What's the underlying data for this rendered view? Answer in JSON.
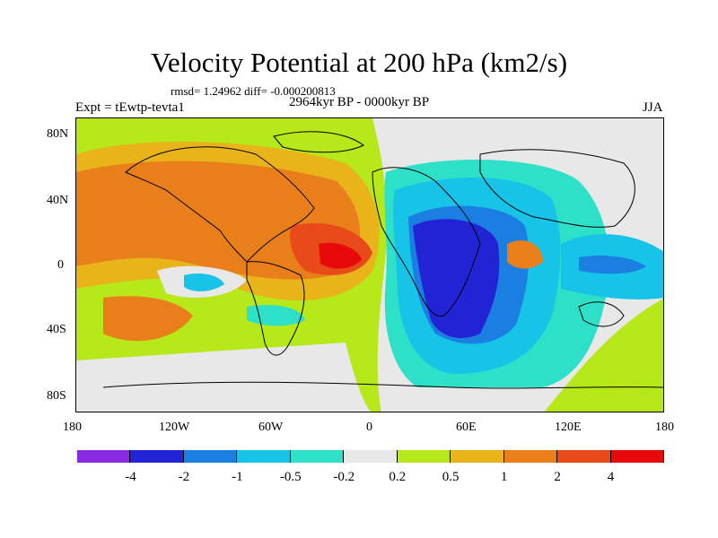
{
  "title": "Velocity Potential at 200 hPa (km2/s)",
  "stats": "rmsd= 1.24962 diff= -0.000200813",
  "experiment": "Expt = tEwtp-tevta1",
  "period": "2964kyr BP - 0000kyr BP",
  "season": "JJA",
  "map": {
    "lat_labels": [
      "80N",
      "40N",
      "0",
      "40S",
      "80S"
    ],
    "lon_labels": [
      "180",
      "120W",
      "60W",
      "0",
      "60E",
      "120E",
      "180"
    ]
  },
  "colorbar": {
    "labels": [
      "-4",
      "-2",
      "-1",
      "-0.5",
      "-0.2",
      "0.2",
      "0.5",
      "1",
      "2",
      "4"
    ],
    "colors": [
      "#8a2be2",
      "#2323d6",
      "#1a7fe0",
      "#18c3e8",
      "#2ee0c8",
      "#e8e8e8",
      "#b6e81a",
      "#e8b41a",
      "#e87f1a",
      "#e84a1a",
      "#e80a0a"
    ]
  }
}
